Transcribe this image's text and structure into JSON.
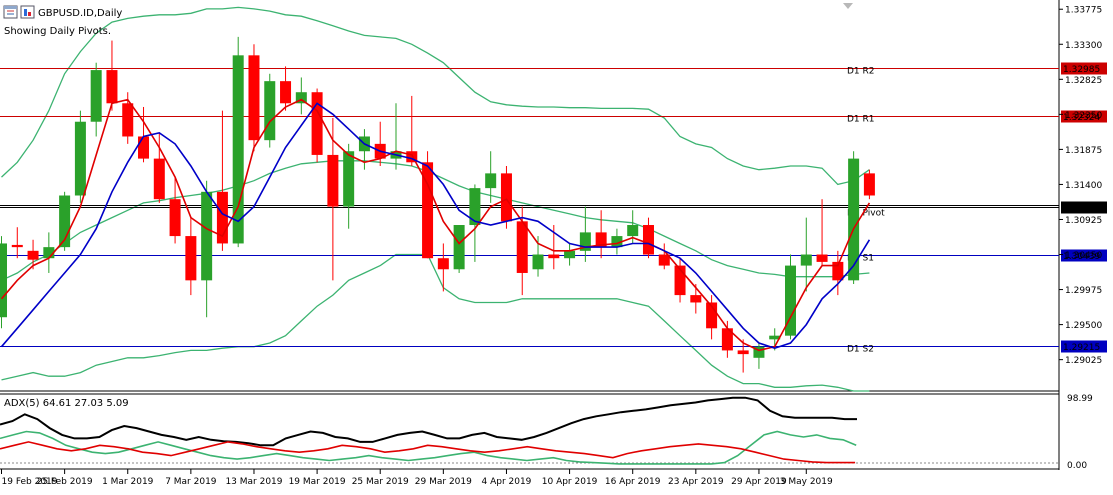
{
  "symbol_title": "GBPUSD.ID,Daily",
  "subtitle": "Showing Daily Pivots.",
  "colors": {
    "bull": "#2aa12a",
    "bear": "#ff0000",
    "bb": "#3cb371",
    "ma_fast": "#e00000",
    "ma_slow": "#0000c8",
    "pivot_red": "#cc0000",
    "pivot_blue": "#0000c0",
    "pivot_black": "#000000",
    "adx_main": "#000000",
    "adx_plus": "#3cb371",
    "adx_minus": "#e00000"
  },
  "icons": [
    "chart-window-icon",
    "indicator-icon",
    "scroll-marker-icon"
  ],
  "chart_data": [
    {
      "type": "candlestick",
      "title": "GBPUSD.ID,Daily",
      "subtitle": "Showing Daily Pivots.",
      "ylim": [
        1.286,
        1.339
      ],
      "y_ticks": [
        "1.33775",
        "1.33300",
        "1.32825",
        "1.32350",
        "1.31875",
        "1.31400",
        "1.30925",
        "1.30450",
        "1.29975",
        "1.29500",
        "1.29025"
      ],
      "x_ticks": [
        "19 Feb 2019",
        "25 Feb 2019",
        "1 Mar 2019",
        "7 Mar 2019",
        "13 Mar 2019",
        "19 Mar 2019",
        "25 Mar 2019",
        "29 Mar 2019",
        "4 Apr 2019",
        "10 Apr 2019",
        "16 Apr 2019",
        "23 Apr 2019",
        "29 Apr 2019",
        "3 May 2019"
      ],
      "x_tick_index": [
        0,
        4,
        8,
        12,
        16,
        20,
        24,
        28,
        32,
        36,
        40,
        44,
        48,
        51
      ],
      "candles": [
        {
          "o": 1.296,
          "h": 1.307,
          "l": 1.2945,
          "c": 1.306
        },
        {
          "o": 1.3058,
          "h": 1.3082,
          "l": 1.304,
          "c": 1.3055
        },
        {
          "o": 1.305,
          "h": 1.3065,
          "l": 1.3025,
          "c": 1.3038
        },
        {
          "o": 1.304,
          "h": 1.3075,
          "l": 1.302,
          "c": 1.3055
        },
        {
          "o": 1.3055,
          "h": 1.313,
          "l": 1.305,
          "c": 1.3125
        },
        {
          "o": 1.3125,
          "h": 1.324,
          "l": 1.3115,
          "c": 1.3225
        },
        {
          "o": 1.3225,
          "h": 1.3305,
          "l": 1.3205,
          "c": 1.3295
        },
        {
          "o": 1.3295,
          "h": 1.3335,
          "l": 1.324,
          "c": 1.325
        },
        {
          "o": 1.325,
          "h": 1.3265,
          "l": 1.3195,
          "c": 1.3205
        },
        {
          "o": 1.3205,
          "h": 1.3245,
          "l": 1.317,
          "c": 1.3175
        },
        {
          "o": 1.3175,
          "h": 1.321,
          "l": 1.3115,
          "c": 1.312
        },
        {
          "o": 1.312,
          "h": 1.315,
          "l": 1.306,
          "c": 1.307
        },
        {
          "o": 1.307,
          "h": 1.3095,
          "l": 1.299,
          "c": 1.301
        },
        {
          "o": 1.301,
          "h": 1.3145,
          "l": 1.296,
          "c": 1.313
        },
        {
          "o": 1.313,
          "h": 1.324,
          "l": 1.305,
          "c": 1.306
        },
        {
          "o": 1.306,
          "h": 1.334,
          "l": 1.3055,
          "c": 1.3315
        },
        {
          "o": 1.3315,
          "h": 1.333,
          "l": 1.3185,
          "c": 1.32
        },
        {
          "o": 1.32,
          "h": 1.329,
          "l": 1.319,
          "c": 1.328
        },
        {
          "o": 1.328,
          "h": 1.33,
          "l": 1.324,
          "c": 1.325
        },
        {
          "o": 1.325,
          "h": 1.3285,
          "l": 1.3235,
          "c": 1.3265
        },
        {
          "o": 1.3265,
          "h": 1.327,
          "l": 1.317,
          "c": 1.318
        },
        {
          "o": 1.318,
          "h": 1.323,
          "l": 1.301,
          "c": 1.311
        },
        {
          "o": 1.311,
          "h": 1.3195,
          "l": 1.308,
          "c": 1.3185
        },
        {
          "o": 1.3185,
          "h": 1.3215,
          "l": 1.316,
          "c": 1.3205
        },
        {
          "o": 1.3195,
          "h": 1.3225,
          "l": 1.3165,
          "c": 1.3175
        },
        {
          "o": 1.3175,
          "h": 1.325,
          "l": 1.316,
          "c": 1.3185
        },
        {
          "o": 1.3185,
          "h": 1.326,
          "l": 1.3165,
          "c": 1.317
        },
        {
          "o": 1.317,
          "h": 1.3185,
          "l": 1.304,
          "c": 1.304
        },
        {
          "o": 1.304,
          "h": 1.306,
          "l": 1.2995,
          "c": 1.3025
        },
        {
          "o": 1.3025,
          "h": 1.3085,
          "l": 1.302,
          "c": 1.3085
        },
        {
          "o": 1.3085,
          "h": 1.314,
          "l": 1.3035,
          "c": 1.3135
        },
        {
          "o": 1.3135,
          "h": 1.3185,
          "l": 1.3115,
          "c": 1.3155
        },
        {
          "o": 1.3155,
          "h": 1.3165,
          "l": 1.308,
          "c": 1.309
        },
        {
          "o": 1.309,
          "h": 1.311,
          "l": 1.299,
          "c": 1.302
        },
        {
          "o": 1.3025,
          "h": 1.307,
          "l": 1.3015,
          "c": 1.3045
        },
        {
          "o": 1.3045,
          "h": 1.3085,
          "l": 1.3025,
          "c": 1.304
        },
        {
          "o": 1.304,
          "h": 1.306,
          "l": 1.303,
          "c": 1.305
        },
        {
          "o": 1.305,
          "h": 1.311,
          "l": 1.3035,
          "c": 1.3075
        },
        {
          "o": 1.3075,
          "h": 1.3105,
          "l": 1.304,
          "c": 1.3055
        },
        {
          "o": 1.3055,
          "h": 1.308,
          "l": 1.3045,
          "c": 1.307
        },
        {
          "o": 1.307,
          "h": 1.3105,
          "l": 1.306,
          "c": 1.3085
        },
        {
          "o": 1.3085,
          "h": 1.3095,
          "l": 1.304,
          "c": 1.3045
        },
        {
          "o": 1.3045,
          "h": 1.306,
          "l": 1.3025,
          "c": 1.303
        },
        {
          "o": 1.303,
          "h": 1.304,
          "l": 1.298,
          "c": 1.299
        },
        {
          "o": 1.299,
          "h": 1.3005,
          "l": 1.2965,
          "c": 1.298
        },
        {
          "o": 1.298,
          "h": 1.299,
          "l": 1.293,
          "c": 1.2945
        },
        {
          "o": 1.2945,
          "h": 1.2955,
          "l": 1.2905,
          "c": 1.2915
        },
        {
          "o": 1.2915,
          "h": 1.293,
          "l": 1.2885,
          "c": 1.291
        },
        {
          "o": 1.2905,
          "h": 1.2925,
          "l": 1.289,
          "c": 1.292
        },
        {
          "o": 1.293,
          "h": 1.2945,
          "l": 1.2915,
          "c": 1.2935
        },
        {
          "o": 1.2935,
          "h": 1.3045,
          "l": 1.293,
          "c": 1.303
        },
        {
          "o": 1.303,
          "h": 1.3095,
          "l": 1.2995,
          "c": 1.3045
        },
        {
          "o": 1.3045,
          "h": 1.312,
          "l": 1.303,
          "c": 1.3035
        },
        {
          "o": 1.3035,
          "h": 1.305,
          "l": 1.299,
          "c": 1.301
        },
        {
          "o": 1.301,
          "h": 1.3185,
          "l": 1.3005,
          "c": 1.3175
        },
        {
          "o": 1.3155,
          "h": 1.316,
          "l": 1.312,
          "c": 1.3125
        }
      ],
      "ma_fast": [
        1.2985,
        1.301,
        1.303,
        1.304,
        1.3065,
        1.311,
        1.318,
        1.325,
        1.3255,
        1.3225,
        1.319,
        1.315,
        1.3095,
        1.308,
        1.307,
        1.311,
        1.319,
        1.3225,
        1.3245,
        1.3255,
        1.324,
        1.32,
        1.318,
        1.317,
        1.3175,
        1.3185,
        1.318,
        1.314,
        1.309,
        1.306,
        1.308,
        1.311,
        1.312,
        1.309,
        1.306,
        1.305,
        1.305,
        1.3055,
        1.3058,
        1.306,
        1.3068,
        1.306,
        1.305,
        1.3025,
        1.3,
        1.2975,
        1.2945,
        1.2925,
        1.2915,
        1.292,
        1.296,
        1.3,
        1.303,
        1.303,
        1.308,
        1.3115
      ],
      "ma_slow": [
        1.292,
        1.2945,
        1.297,
        1.2995,
        1.302,
        1.3045,
        1.308,
        1.313,
        1.317,
        1.3205,
        1.321,
        1.3195,
        1.3165,
        1.313,
        1.31,
        1.309,
        1.311,
        1.315,
        1.319,
        1.322,
        1.325,
        1.3235,
        1.3215,
        1.3195,
        1.3185,
        1.318,
        1.3175,
        1.3165,
        1.314,
        1.3105,
        1.309,
        1.3085,
        1.309,
        1.3095,
        1.309,
        1.3075,
        1.306,
        1.3055,
        1.3055,
        1.3055,
        1.306,
        1.306,
        1.305,
        1.304,
        1.302,
        1.2995,
        1.297,
        1.2945,
        1.2925,
        1.2918,
        1.2925,
        1.295,
        1.2985,
        1.3005,
        1.303,
        1.3065
      ],
      "bb_upper": [
        1.315,
        1.317,
        1.32,
        1.324,
        1.329,
        1.332,
        1.3345,
        1.336,
        1.3365,
        1.3368,
        1.337,
        1.337,
        1.3372,
        1.3378,
        1.3378,
        1.338,
        1.3378,
        1.3375,
        1.337,
        1.3368,
        1.3362,
        1.3355,
        1.3348,
        1.3342,
        1.334,
        1.3338,
        1.333,
        1.3318,
        1.3305,
        1.3285,
        1.3265,
        1.3252,
        1.3248,
        1.3246,
        1.3245,
        1.3245,
        1.3244,
        1.3244,
        1.3243,
        1.3243,
        1.3243,
        1.3242,
        1.323,
        1.3205,
        1.3195,
        1.319,
        1.3175,
        1.3165,
        1.316,
        1.3162,
        1.3165,
        1.3165,
        1.3162,
        1.314,
        1.3145,
        1.316
      ],
      "bb_middle": [
        1.301,
        1.302,
        1.3035,
        1.3045,
        1.306,
        1.3075,
        1.3085,
        1.3095,
        1.3105,
        1.3115,
        1.3118,
        1.3122,
        1.3125,
        1.3128,
        1.3132,
        1.3138,
        1.3145,
        1.3155,
        1.3162,
        1.3168,
        1.317,
        1.3172,
        1.3172,
        1.3172,
        1.317,
        1.3168,
        1.3165,
        1.3158,
        1.3148,
        1.3138,
        1.313,
        1.3125,
        1.312,
        1.3115,
        1.311,
        1.3105,
        1.31,
        1.3095,
        1.3092,
        1.309,
        1.3088,
        1.308,
        1.307,
        1.306,
        1.305,
        1.3038,
        1.303,
        1.3025,
        1.302,
        1.3018,
        1.3015,
        1.3015,
        1.3015,
        1.3015,
        1.3018,
        1.302
      ],
      "bb_lower": [
        1.2875,
        1.288,
        1.2885,
        1.288,
        1.288,
        1.2885,
        1.2895,
        1.29,
        1.2905,
        1.2905,
        1.2908,
        1.2912,
        1.2915,
        1.2915,
        1.2918,
        1.292,
        1.292,
        1.2925,
        1.2935,
        1.2955,
        1.2975,
        1.299,
        1.301,
        1.302,
        1.303,
        1.3045,
        1.3045,
        1.3045,
        1.3,
        1.2985,
        1.298,
        1.298,
        1.298,
        1.2985,
        1.2985,
        1.2985,
        1.2985,
        1.2985,
        1.2985,
        1.2985,
        1.298,
        1.2975,
        1.2955,
        1.2935,
        1.2915,
        1.2895,
        1.288,
        1.287,
        1.287,
        1.2865,
        1.2865,
        1.2867,
        1.2868,
        1.2865,
        1.286,
        1.286
      ],
      "pivots": [
        {
          "label": "D1 R2",
          "value": 1.32985,
          "value_text": "1.32985",
          "color": "#cc0000"
        },
        {
          "label": "D1 R1",
          "value": 1.32324,
          "value_text": "1.32324",
          "color": "#cc0000"
        },
        {
          "label": "D1 Pivot",
          "value": 1.311,
          "value_text": "1.31100",
          "color": "#000000"
        },
        {
          "label": "D1 S1",
          "value": 1.30439,
          "value_text": "1.30439",
          "color": "#0000c0"
        },
        {
          "label": "D1 S2",
          "value": 1.29215,
          "value_text": "1.29215",
          "color": "#0000c0"
        }
      ],
      "current_price": 1.3112
    },
    {
      "type": "line",
      "title": "ADX(5) 64.61 27.03 5.09",
      "ylim": [
        0,
        100
      ],
      "y_ticks": [
        "98.99",
        "0.00"
      ],
      "series": [
        {
          "values": [
            60,
            65,
            75,
            68,
            55,
            45,
            40,
            40,
            42,
            52,
            58,
            55,
            50,
            45,
            42,
            38,
            42,
            38,
            36,
            35,
            33,
            30,
            30,
            40,
            45,
            50,
            48,
            42,
            40,
            35,
            35,
            40,
            45,
            48,
            50,
            45,
            40,
            40,
            45,
            48,
            42,
            40,
            38,
            42,
            48,
            55,
            62,
            68,
            72,
            75,
            78,
            80,
            82,
            85,
            88,
            90,
            92,
            95,
            97,
            99,
            99,
            95,
            80,
            72,
            70,
            70,
            70,
            70,
            68,
            68
          ]
        },
        {
          "values": [
            40,
            45,
            50,
            48,
            40,
            30,
            25,
            20,
            18,
            20,
            25,
            30,
            35,
            30,
            25,
            20,
            15,
            12,
            10,
            12,
            15,
            18,
            15,
            12,
            10,
            8,
            10,
            12,
            15,
            12,
            10,
            8,
            10,
            12,
            15,
            18,
            20,
            15,
            12,
            10,
            8,
            10,
            12,
            8,
            6,
            5,
            4,
            3,
            3,
            3,
            3,
            3,
            3,
            3,
            3,
            5,
            15,
            30,
            45,
            50,
            45,
            42,
            45,
            40,
            38,
            30
          ]
        },
        {
          "values": [
            25,
            30,
            35,
            30,
            25,
            22,
            25,
            30,
            28,
            25,
            20,
            18,
            15,
            20,
            25,
            30,
            35,
            32,
            28,
            25,
            22,
            20,
            22,
            25,
            30,
            28,
            25,
            20,
            22,
            25,
            30,
            28,
            25,
            22,
            20,
            22,
            25,
            28,
            25,
            22,
            20,
            18,
            15,
            12,
            18,
            22,
            25,
            28,
            30,
            32,
            30,
            28,
            25,
            20,
            15,
            10,
            8,
            6,
            5,
            5,
            5
          ]
        }
      ]
    }
  ]
}
